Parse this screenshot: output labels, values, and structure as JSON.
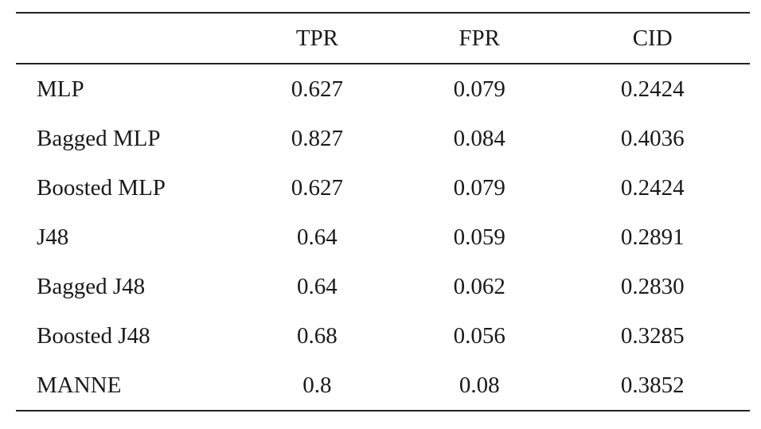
{
  "table": {
    "headers": [
      "",
      "TPR",
      "FPR",
      "CID"
    ],
    "rows": [
      {
        "method": "MLP",
        "tpr": "0.627",
        "fpr": "0.079",
        "cid": "0.2424"
      },
      {
        "method": "Bagged MLP",
        "tpr": "0.827",
        "fpr": "0.084",
        "cid": "0.4036"
      },
      {
        "method": "Boosted MLP",
        "tpr": "0.627",
        "fpr": "0.079",
        "cid": "0.2424"
      },
      {
        "method": "J48",
        "tpr": "0.64",
        "fpr": "0.059",
        "cid": "0.2891"
      },
      {
        "method": "Bagged J48",
        "tpr": "0.64",
        "fpr": "0.062",
        "cid": "0.2830"
      },
      {
        "method": "Boosted J48",
        "tpr": "0.68",
        "fpr": "0.056",
        "cid": "0.3285"
      },
      {
        "method": "MANNE",
        "tpr": "0.8",
        "fpr": "0.08",
        "cid": "0.3852"
      }
    ]
  }
}
